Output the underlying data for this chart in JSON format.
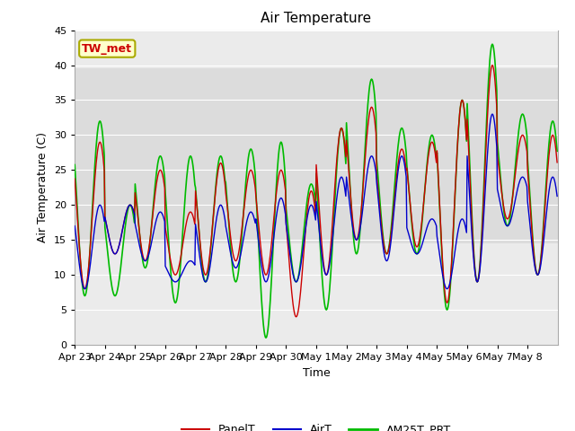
{
  "title": "Air Temperature",
  "ylabel": "Air Temperature (C)",
  "xlabel": "Time",
  "ylim": [
    0,
    45
  ],
  "yticks": [
    0,
    5,
    10,
    15,
    20,
    25,
    30,
    35,
    40,
    45
  ],
  "shade_band": [
    14.5,
    39.5
  ],
  "shade_color": "#dcdcdc",
  "bg_color": "#ebebeb",
  "line_colors": {
    "PanelT": "#cc0000",
    "AirT": "#0000cc",
    "AM25T_PRT": "#00bb00"
  },
  "line_widths": {
    "PanelT": 1.0,
    "AirT": 1.0,
    "AM25T_PRT": 1.2
  },
  "tw_met_label": "TW_met",
  "tw_met_bg": "#ffffcc",
  "tw_met_border": "#cccc00",
  "tw_met_text_color": "#cc0000",
  "x_tick_labels": [
    "Apr 23",
    "Apr 24",
    "Apr 25",
    "Apr 26",
    "Apr 27",
    "Apr 28",
    "Apr 29",
    "Apr 30",
    "May 1",
    "May 2",
    "May 3",
    "May 4",
    "May 5",
    "May 6",
    "May 7",
    "May 8"
  ],
  "n_days": 16,
  "pts_per_day": 48,
  "panel_peaks": [
    29,
    20,
    25,
    19,
    26,
    25,
    25,
    22,
    31,
    34,
    28,
    29,
    35,
    40,
    30,
    30
  ],
  "panel_troughs": [
    8,
    13,
    12,
    10,
    10,
    12,
    10,
    4,
    10,
    15,
    13,
    14,
    6,
    9,
    18,
    10
  ],
  "air_peaks": [
    20,
    20,
    19,
    12,
    20,
    19,
    21,
    20,
    24,
    27,
    27,
    18,
    18,
    33,
    24,
    24
  ],
  "air_troughs": [
    8,
    13,
    12,
    9,
    9,
    11,
    9,
    9,
    10,
    15,
    12,
    13,
    8,
    9,
    17,
    10
  ],
  "am25_peaks": [
    32,
    20,
    27,
    27,
    27,
    28,
    29,
    23,
    31,
    38,
    31,
    30,
    35,
    43,
    33,
    32
  ],
  "am25_troughs": [
    7,
    7,
    11,
    6,
    9,
    9,
    1,
    9,
    5,
    13,
    13,
    13,
    5,
    9,
    17,
    10
  ]
}
